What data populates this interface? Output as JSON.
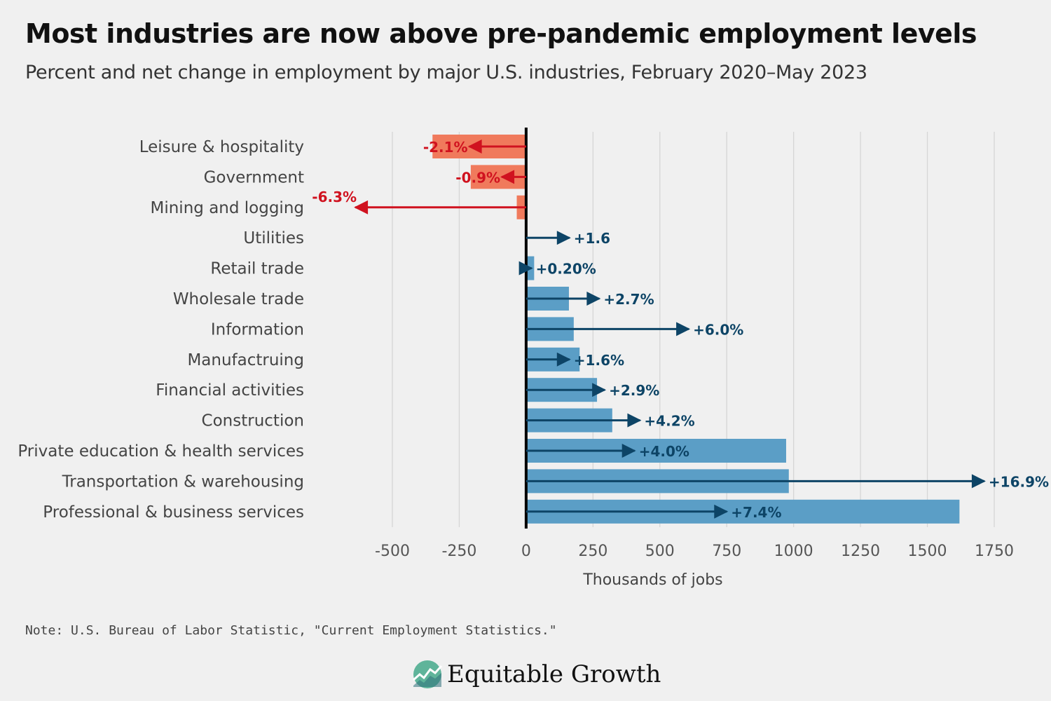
{
  "header": {
    "title": "Most industries are now above pre-pandemic employment levels",
    "subtitle": "Percent and net change in employment by major U.S. industries, February 2020–May 2023"
  },
  "chart_data": {
    "type": "bar",
    "orientation": "horizontal",
    "categories": [
      "Leisure & hospitality",
      "Government",
      "Mining and logging",
      "Utilities",
      "Retail trade",
      "Wholesale trade",
      "Information",
      "Manufactruing",
      "Financial activities",
      "Construction",
      "Private education & health services",
      "Transportation & warehousing",
      "Professional & business services"
    ],
    "series": [
      {
        "name": "Net change",
        "values": [
          -350,
          -207,
          -35,
          2,
          30,
          160,
          178,
          200,
          265,
          322,
          972,
          982,
          1620
        ]
      },
      {
        "name": "Percent change",
        "values": [
          -2.1,
          -0.9,
          -6.3,
          1.6,
          0.2,
          2.7,
          6.0,
          1.6,
          2.9,
          4.2,
          4.0,
          16.9,
          7.4
        ]
      }
    ],
    "labels": [
      "-2.1%",
      "-0.9%",
      "-6.3%",
      "+1.6",
      "+0.20%",
      "+2.7%",
      "+6.0%",
      "+1.6%",
      "+2.9%",
      "+4.2%",
      "+4.0%",
      "+16.9%",
      "+7.4%"
    ],
    "xticks": [
      -500,
      -250,
      0,
      250,
      500,
      750,
      1000,
      1250,
      1500,
      1750
    ],
    "xlim": [
      -500,
      1750
    ],
    "xlabel": "Thousands of jobs",
    "ylabel": "",
    "grid": true,
    "colors": {
      "positive_bar": "#5b9ec6",
      "negative_bar": "#f07a5c",
      "positive_arrow": "#0d4466",
      "negative_arrow": "#d0121f",
      "zero_line": "#000000",
      "grid": "#d6d6d6"
    }
  },
  "footer": {
    "note": "Note: U.S. Bureau of Labor Statistic, \"Current Employment Statistics.\"",
    "brand": "Equitable Growth"
  }
}
